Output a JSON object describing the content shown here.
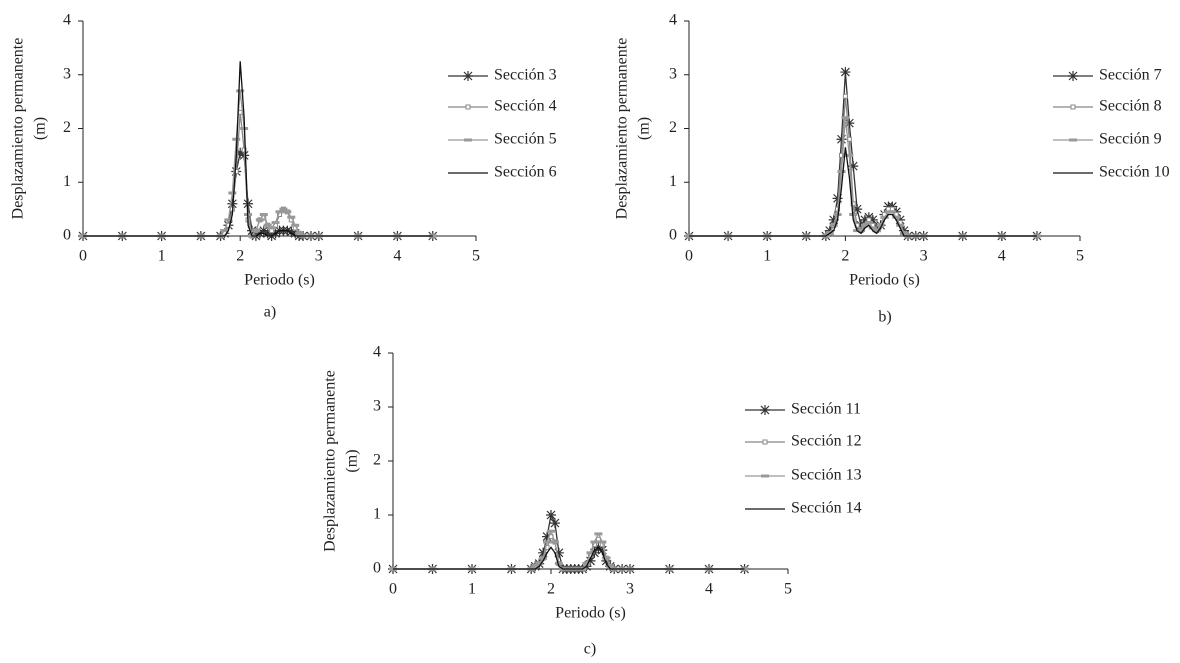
{
  "chart_data": [
    {
      "type": "line",
      "caption": "a)",
      "xlabel": "Periodo (s)",
      "ylabel": [
        "Desplazamiento permanente",
        "(m)"
      ],
      "x": [
        0,
        0.5,
        1,
        1.5,
        1.75,
        1.8,
        1.85,
        1.9,
        1.95,
        2.0,
        2.05,
        2.1,
        2.15,
        2.2,
        2.25,
        2.3,
        2.35,
        2.4,
        2.45,
        2.5,
        2.55,
        2.6,
        2.65,
        2.7,
        2.75,
        2.8,
        2.9,
        3.0,
        3.5,
        4.0,
        4.45
      ],
      "xlim": [
        0,
        5
      ],
      "xticks": [
        0,
        1,
        2,
        3,
        4,
        5
      ],
      "ylim": [
        0,
        4
      ],
      "yticks": [
        0,
        1,
        2,
        3,
        4
      ],
      "series": [
        {
          "name": "Sección 3",
          "color": "#333333",
          "marker": "star",
          "values": [
            0,
            0,
            0,
            0,
            0,
            0.05,
            0.2,
            0.6,
            1.2,
            1.55,
            1.5,
            0.6,
            0.1,
            0,
            0.05,
            0.1,
            0.05,
            0,
            0.05,
            0.1,
            0.1,
            0.1,
            0.08,
            0.05,
            0,
            0,
            0,
            0,
            0,
            0,
            0
          ]
        },
        {
          "name": "Sección 4",
          "color": "#888888",
          "marker": "square",
          "values": [
            0,
            0,
            0,
            0,
            0,
            0.05,
            0.2,
            0.5,
            1.2,
            2.3,
            1.6,
            0.3,
            0,
            0.1,
            0.3,
            0.35,
            0.2,
            0.1,
            0.2,
            0.4,
            0.5,
            0.45,
            0.3,
            0.15,
            0.05,
            0,
            0,
            0,
            0,
            0,
            0
          ]
        },
        {
          "name": "Sección 5",
          "color": "#999999",
          "marker": "dash",
          "values": [
            0,
            0,
            0,
            0,
            0,
            0.1,
            0.3,
            0.8,
            1.8,
            2.7,
            2.0,
            0.4,
            0,
            0.1,
            0.3,
            0.4,
            0.2,
            0.15,
            0.25,
            0.45,
            0.5,
            0.45,
            0.35,
            0.2,
            0.05,
            0,
            0,
            0,
            0,
            0,
            0
          ]
        },
        {
          "name": "Sección 6",
          "color": "#111111",
          "marker": "none",
          "values": [
            0,
            0,
            0,
            0,
            0,
            0,
            0.1,
            0.4,
            1.5,
            3.25,
            2.2,
            0.2,
            0,
            0,
            0.05,
            0.05,
            0,
            0,
            0.05,
            0.1,
            0.1,
            0.1,
            0.05,
            0,
            0,
            0,
            0,
            0,
            0,
            0,
            0
          ]
        }
      ]
    },
    {
      "type": "line",
      "caption": "b)",
      "xlabel": "Periodo (s)",
      "ylabel": [
        "Desplazamiento permanente",
        "(m)"
      ],
      "x": [
        0,
        0.5,
        1,
        1.5,
        1.75,
        1.8,
        1.85,
        1.9,
        1.95,
        2.0,
        2.05,
        2.1,
        2.15,
        2.2,
        2.25,
        2.3,
        2.35,
        2.4,
        2.45,
        2.5,
        2.55,
        2.6,
        2.65,
        2.7,
        2.75,
        2.8,
        2.9,
        3.0,
        3.5,
        4.0,
        4.45
      ],
      "xlim": [
        0,
        5
      ],
      "xticks": [
        0,
        1,
        2,
        3,
        4,
        5
      ],
      "ylim": [
        0,
        4
      ],
      "yticks": [
        0,
        1,
        2,
        3,
        4
      ],
      "series": [
        {
          "name": "Sección 7",
          "color": "#333333",
          "marker": "star",
          "values": [
            0,
            0,
            0,
            0,
            0,
            0.1,
            0.3,
            0.7,
            1.8,
            3.05,
            2.1,
            1.3,
            0.5,
            0.2,
            0.3,
            0.35,
            0.3,
            0.15,
            0.2,
            0.4,
            0.55,
            0.55,
            0.45,
            0.3,
            0.1,
            0,
            0,
            0,
            0,
            0,
            0
          ]
        },
        {
          "name": "Sección 8",
          "color": "#888888",
          "marker": "square",
          "values": [
            0,
            0,
            0,
            0,
            0,
            0.05,
            0.2,
            0.5,
            1.5,
            2.6,
            1.8,
            0.6,
            0.2,
            0.1,
            0.2,
            0.3,
            0.2,
            0.1,
            0.2,
            0.4,
            0.5,
            0.5,
            0.4,
            0.25,
            0.05,
            0,
            0,
            0,
            0,
            0,
            0
          ]
        },
        {
          "name": "Sección 9",
          "color": "#999999",
          "marker": "dash",
          "values": [
            0,
            0,
            0,
            0,
            0,
            0.05,
            0.2,
            0.4,
            1.2,
            2.2,
            1.5,
            0.4,
            0.1,
            0.1,
            0.2,
            0.25,
            0.15,
            0.1,
            0.2,
            0.35,
            0.45,
            0.45,
            0.35,
            0.2,
            0.05,
            0,
            0,
            0,
            0,
            0,
            0
          ]
        },
        {
          "name": "Sección 10",
          "color": "#111111",
          "marker": "none",
          "values": [
            0,
            0,
            0,
            0,
            0,
            0.05,
            0.1,
            0.3,
            0.9,
            1.65,
            1.1,
            0.3,
            0.1,
            0.05,
            0.15,
            0.2,
            0.1,
            0.05,
            0.15,
            0.3,
            0.4,
            0.4,
            0.3,
            0.15,
            0,
            0,
            0,
            0,
            0,
            0,
            0
          ]
        }
      ]
    },
    {
      "type": "line",
      "caption": "c)",
      "xlabel": "Periodo (s)",
      "ylabel": [
        "Desplazamiento permanente",
        "(m)"
      ],
      "x": [
        0,
        0.5,
        1,
        1.5,
        1.75,
        1.8,
        1.85,
        1.9,
        1.95,
        2.0,
        2.05,
        2.1,
        2.15,
        2.2,
        2.25,
        2.3,
        2.35,
        2.4,
        2.45,
        2.5,
        2.55,
        2.6,
        2.65,
        2.7,
        2.75,
        2.8,
        2.9,
        3.0,
        3.5,
        4.0,
        4.45
      ],
      "xlim": [
        0,
        5
      ],
      "xticks": [
        0,
        1,
        2,
        3,
        4,
        5
      ],
      "ylim": [
        0,
        4
      ],
      "yticks": [
        0,
        1,
        2,
        3,
        4
      ],
      "series": [
        {
          "name": "Sección 11",
          "color": "#333333",
          "marker": "star",
          "values": [
            0,
            0,
            0,
            0,
            0,
            0.05,
            0.1,
            0.3,
            0.6,
            1.0,
            0.85,
            0.3,
            0,
            0,
            0,
            0,
            0,
            0,
            0.05,
            0.15,
            0.3,
            0.4,
            0.35,
            0.15,
            0.05,
            0,
            0,
            0,
            0,
            0,
            0
          ]
        },
        {
          "name": "Sección 12",
          "color": "#888888",
          "marker": "square",
          "values": [
            0,
            0,
            0,
            0,
            0,
            0.05,
            0.1,
            0.2,
            0.4,
            0.6,
            0.5,
            0.1,
            0,
            0,
            0,
            0,
            0,
            0,
            0.1,
            0.25,
            0.45,
            0.55,
            0.45,
            0.2,
            0.05,
            0,
            0,
            0,
            0,
            0,
            0
          ]
        },
        {
          "name": "Sección 13",
          "color": "#999999",
          "marker": "dash",
          "values": [
            0,
            0,
            0,
            0,
            0,
            0.05,
            0.1,
            0.2,
            0.5,
            0.7,
            0.5,
            0.1,
            0,
            0,
            0,
            0,
            0,
            0,
            0.1,
            0.3,
            0.5,
            0.65,
            0.5,
            0.2,
            0.05,
            0,
            0,
            0,
            0,
            0,
            0
          ]
        },
        {
          "name": "Sección 14",
          "color": "#111111",
          "marker": "none",
          "values": [
            0,
            0,
            0,
            0,
            0,
            0,
            0.05,
            0.15,
            0.3,
            0.4,
            0.3,
            0.05,
            0,
            0,
            0,
            0,
            0,
            0,
            0.05,
            0.2,
            0.35,
            0.4,
            0.3,
            0.1,
            0,
            0,
            0,
            0,
            0,
            0,
            0
          ]
        }
      ]
    }
  ]
}
